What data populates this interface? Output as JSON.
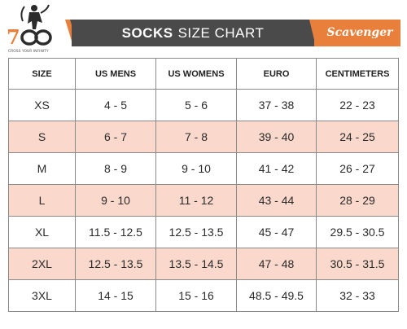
{
  "header": {
    "logo_text": "700",
    "logo_tagline": "CROSS YOUR INFINITY",
    "title_bold": "SOCKS",
    "title_rest": "SIZE CHART",
    "brand": "Scavenger"
  },
  "colors": {
    "banner": "#4a4a4a",
    "accent": "#e8803c",
    "row_shade": "#fad9cc"
  },
  "table": {
    "headers": [
      "SIZE",
      "US MENS",
      "US WOMENS",
      "EURO",
      "CENTIMETERS"
    ],
    "rows": [
      [
        "XS",
        "4 - 5",
        "5 - 6",
        "37 - 38",
        "22 - 23"
      ],
      [
        "S",
        "6 - 7",
        "7 - 8",
        "39 - 40",
        "24 - 25"
      ],
      [
        "M",
        "8 - 9",
        "9 - 10",
        "41 - 42",
        "26 - 27"
      ],
      [
        "L",
        "9 - 10",
        "11 - 12",
        "43 - 44",
        "28 - 29"
      ],
      [
        "XL",
        "11.5 - 12.5",
        "12.5 - 13.5",
        "45 - 47",
        "29.5 - 30.5"
      ],
      [
        "2XL",
        "12.5 - 13.5",
        "13.5 - 14.5",
        "47 - 48",
        "30.5 - 31.5"
      ],
      [
        "3XL",
        "14 - 15",
        "15 - 16",
        "48.5 - 49.5",
        "32 - 33"
      ]
    ]
  }
}
